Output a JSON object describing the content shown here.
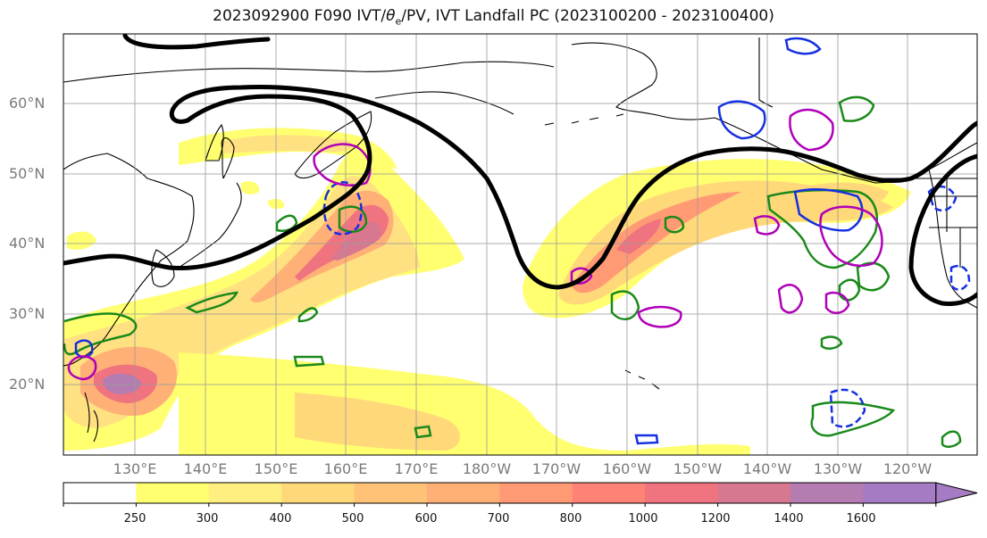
{
  "title": "2023092900 F090 IVT/θe/PV, IVT Landfall PC (2023100200 - 2023100400)",
  "title_parts": {
    "prefix": "2023092900 F090 IVT/",
    "theta_symbol": "θ",
    "theta_sub": "e",
    "suffix": "/PV, IVT Landfall PC (2023100200 - 2023100400)"
  },
  "map": {
    "lat_labels": [
      "60°N",
      "50°N",
      "40°N",
      "30°N",
      "20°N"
    ],
    "lon_labels": [
      "130°E",
      "140°E",
      "150°E",
      "160°E",
      "170°E",
      "180°W",
      "170°W",
      "160°W",
      "150°W",
      "140°W",
      "130°W",
      "120°W"
    ],
    "colors": {
      "jet_contour": "#000000",
      "green_contour": "#1a8a1a",
      "blue_contour": "#1530e0",
      "magenta_contour": "#b000b8",
      "coastline": "#000000",
      "grid": "#9a9a9a"
    }
  },
  "colorbar": {
    "labels": [
      "250",
      "300",
      "400",
      "500",
      "600",
      "700",
      "800",
      "1000",
      "1200",
      "1400",
      "1600"
    ],
    "colors": [
      "#ffffff",
      "#ffff70",
      "#ffee80",
      "#ffd87a",
      "#ffc277",
      "#ffb076",
      "#ff9a74",
      "#ff8276",
      "#f07380",
      "#d87890",
      "#b47cb0",
      "#a57cc4"
    ]
  }
}
